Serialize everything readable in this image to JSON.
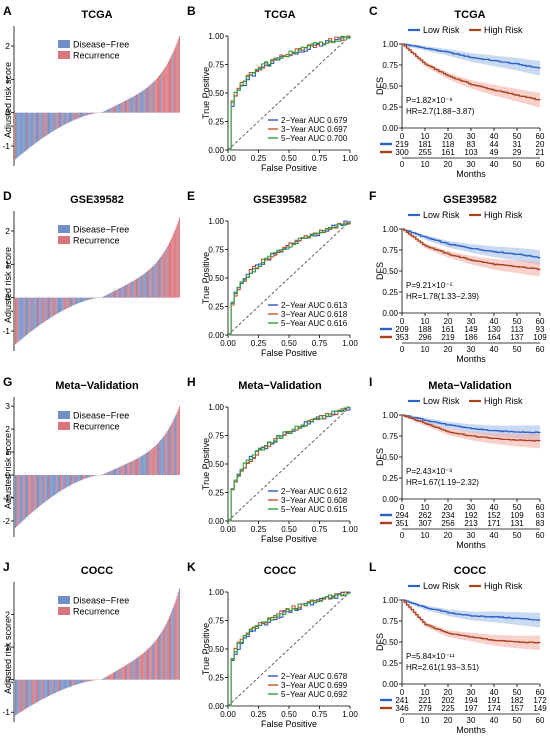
{
  "rows": [
    {
      "waterfall": {
        "letter": "A",
        "title": "TCGA",
        "ylabel": "Adjusted risk score",
        "legend": [
          "Disease−Free",
          "Recurrence"
        ],
        "ylim": [
          -1.6,
          2.6
        ],
        "yticks": [
          -1,
          0,
          1,
          2
        ],
        "min": -1.4,
        "max": 2.3
      },
      "roc": {
        "letter": "B",
        "title": "TCGA",
        "xlabel": "False Positive",
        "ylabel": "True Positive",
        "ticks": [
          "0.00",
          "0.25",
          "0.50",
          "0.75",
          "1.00"
        ],
        "auc_labels": [
          "2−Year AUC 0.679",
          "3−Year AUC 0.697",
          "5−Year AUC 0.700"
        ]
      },
      "km": {
        "letter": "C",
        "title": "TCGA",
        "ylabel": "DFS",
        "xlabel": "Months",
        "legend": [
          "Low Risk",
          "High Risk"
        ],
        "yticks": [
          "0.00",
          "0.25",
          "0.50",
          "0.75",
          "1.00"
        ],
        "xticks": [
          "0",
          "10",
          "20",
          "30",
          "40",
          "50",
          "60"
        ],
        "pvalue": "P=1.82×10⁻⁸",
        "hr": "HR=2.7(1.88−3.87)",
        "risk_low": [
          "219",
          "181",
          "118",
          "83",
          "44",
          "31",
          "20"
        ],
        "risk_high": [
          "300",
          "255",
          "161",
          "103",
          "49",
          "29",
          "21"
        ],
        "curve_low": [
          [
            0,
            1.0
          ],
          [
            10,
            0.95
          ],
          [
            20,
            0.9
          ],
          [
            30,
            0.84
          ],
          [
            40,
            0.8
          ],
          [
            50,
            0.76
          ],
          [
            60,
            0.71
          ]
        ],
        "curve_high": [
          [
            0,
            1.0
          ],
          [
            10,
            0.76
          ],
          [
            20,
            0.62
          ],
          [
            30,
            0.52
          ],
          [
            40,
            0.45
          ],
          [
            50,
            0.39
          ],
          [
            60,
            0.33
          ]
        ]
      }
    },
    {
      "waterfall": {
        "letter": "D",
        "title": "GSE39582",
        "ylabel": "Adjusted risk score",
        "legend": [
          "Disease−Free",
          "Recurrence"
        ],
        "ylim": [
          -1.6,
          2.6
        ],
        "yticks": [
          -1,
          0,
          1,
          2
        ],
        "min": -1.4,
        "max": 2.4
      },
      "roc": {
        "letter": "E",
        "title": "GSE39582",
        "xlabel": "False Positive",
        "ylabel": "True Positive",
        "ticks": [
          "0.00",
          "0.25",
          "0.50",
          "0.75",
          "1.00"
        ],
        "auc_labels": [
          "2−Year AUC 0.613",
          "3−Year AUC 0.618",
          "5−Year AUC 0.616"
        ]
      },
      "km": {
        "letter": "F",
        "title": "GSE39582",
        "ylabel": "DFS",
        "xlabel": "Months",
        "legend": [
          "Low Risk",
          "High Risk"
        ],
        "yticks": [
          "0.00",
          "0.25",
          "0.50",
          "0.75",
          "1.00"
        ],
        "xticks": [
          "0",
          "10",
          "20",
          "30",
          "40",
          "50",
          "60"
        ],
        "pvalue": "P=9.21×10⁻⁵",
        "hr": "HR=1.78(1.33−2.39)",
        "risk_low": [
          "209",
          "188",
          "161",
          "149",
          "130",
          "113",
          "93"
        ],
        "risk_high": [
          "353",
          "296",
          "219",
          "186",
          "164",
          "137",
          "109"
        ],
        "curve_low": [
          [
            0,
            1.0
          ],
          [
            10,
            0.9
          ],
          [
            20,
            0.82
          ],
          [
            30,
            0.77
          ],
          [
            40,
            0.73
          ],
          [
            50,
            0.7
          ],
          [
            60,
            0.66
          ]
        ],
        "curve_high": [
          [
            0,
            1.0
          ],
          [
            10,
            0.8
          ],
          [
            20,
            0.7
          ],
          [
            30,
            0.63
          ],
          [
            40,
            0.58
          ],
          [
            50,
            0.55
          ],
          [
            60,
            0.52
          ]
        ]
      }
    },
    {
      "waterfall": {
        "letter": "G",
        "title": "Meta−Validation",
        "ylabel": "Adjusted risk score",
        "legend": [
          "Disease−Free",
          "Recurrence"
        ],
        "ylim": [
          -2.7,
          3.4
        ],
        "yticks": [
          -2,
          -1,
          0,
          1,
          2,
          3
        ],
        "min": -2.3,
        "max": 3.0
      },
      "roc": {
        "letter": "H",
        "title": "Meta−Validation",
        "xlabel": "False Positive",
        "ylabel": "True Positive",
        "ticks": [
          "0.00",
          "0.25",
          "0.50",
          "0.75",
          "1.00"
        ],
        "auc_labels": [
          "2−Year AUC 0.612",
          "3−Year AUC 0.608",
          "5−Year AUC 0.615"
        ]
      },
      "km": {
        "letter": "I",
        "title": "Meta−Validation",
        "ylabel": "DFS",
        "xlabel": "Months",
        "legend": [
          "Low Risk",
          "High Risk"
        ],
        "yticks": [
          "0.00",
          "0.25",
          "0.50",
          "0.75",
          "1.00"
        ],
        "xticks": [
          "0",
          "10",
          "20",
          "30",
          "40",
          "50",
          "60"
        ],
        "pvalue": "P=2.43×10⁻³",
        "hr": "HR=1.67(1.19−2.32)",
        "risk_low": [
          "294",
          "262",
          "234",
          "192",
          "152",
          "109",
          "63"
        ],
        "risk_high": [
          "351",
          "307",
          "256",
          "213",
          "171",
          "131",
          "83"
        ],
        "curve_low": [
          [
            0,
            1.0
          ],
          [
            10,
            0.94
          ],
          [
            20,
            0.88
          ],
          [
            30,
            0.84
          ],
          [
            40,
            0.81
          ],
          [
            50,
            0.8
          ],
          [
            60,
            0.79
          ]
        ],
        "curve_high": [
          [
            0,
            1.0
          ],
          [
            10,
            0.9
          ],
          [
            20,
            0.8
          ],
          [
            30,
            0.75
          ],
          [
            40,
            0.72
          ],
          [
            50,
            0.7
          ],
          [
            60,
            0.69
          ]
        ]
      }
    },
    {
      "waterfall": {
        "letter": "J",
        "title": "COCC",
        "ylabel": "Adjusted risk score",
        "legend": [
          "Disease−Free",
          "Recurrence"
        ],
        "ylim": [
          -1.3,
          3.0
        ],
        "yticks": [
          -1,
          0,
          1,
          2
        ],
        "min": -1.1,
        "max": 2.8
      },
      "roc": {
        "letter": "K",
        "title": "COCC",
        "xlabel": "False Positive",
        "ylabel": "True Positive",
        "ticks": [
          "0.00",
          "0.25",
          "0.50",
          "0.75",
          "1.00"
        ],
        "auc_labels": [
          "2−Year AUC 0.678",
          "3−Year AUC 0.699",
          "5−Year AUC 0.692"
        ]
      },
      "km": {
        "letter": "L",
        "title": "COCC",
        "ylabel": "DFS",
        "xlabel": "Months",
        "legend": [
          "Low Risk",
          "High Risk"
        ],
        "yticks": [
          "0.00",
          "0.25",
          "0.50",
          "0.75",
          "1.00"
        ],
        "xticks": [
          "0",
          "10",
          "20",
          "30",
          "40",
          "50",
          "60"
        ],
        "pvalue": "P=5.84×10⁻¹¹",
        "hr": "HR=2.61(1.93−3.51)",
        "risk_low": [
          "241",
          "221",
          "202",
          "194",
          "191",
          "182",
          "172"
        ],
        "risk_high": [
          "346",
          "279",
          "225",
          "197",
          "174",
          "157",
          "149"
        ],
        "curve_low": [
          [
            0,
            1.0
          ],
          [
            10,
            0.91
          ],
          [
            20,
            0.85
          ],
          [
            30,
            0.81
          ],
          [
            40,
            0.8
          ],
          [
            50,
            0.78
          ],
          [
            60,
            0.76
          ]
        ],
        "curve_high": [
          [
            0,
            1.0
          ],
          [
            10,
            0.71
          ],
          [
            20,
            0.6
          ],
          [
            30,
            0.56
          ],
          [
            40,
            0.52
          ],
          [
            50,
            0.5
          ],
          [
            60,
            0.49
          ]
        ]
      }
    }
  ],
  "colors": {
    "disease_free": "#6f8fc6",
    "recurrence": "#d9747c",
    "low_risk": "#2c63c9",
    "high_risk": "#a8431e",
    "roc_2y": "#3255c8",
    "roc_3y": "#c0562a",
    "roc_5y": "#2e9e3c",
    "ci_low": "#9db9e8",
    "ci_high": "#f2a9a3"
  },
  "chart_data": [
    {
      "type": "bar",
      "title": "TCGA",
      "ylabel": "Adjusted risk score",
      "ylim": [
        -1.6,
        2.6
      ],
      "series": [
        {
          "name": "Disease−Free"
        },
        {
          "name": "Recurrence"
        }
      ],
      "range": [
        -1.4,
        2.3
      ]
    },
    {
      "type": "line",
      "title": "TCGA",
      "xlabel": "False Positive",
      "ylabel": "True Positive",
      "series": [
        {
          "name": "2−Year AUC 0.679"
        },
        {
          "name": "3−Year AUC 0.697"
        },
        {
          "name": "5−Year AUC 0.700"
        }
      ]
    },
    {
      "type": "line",
      "title": "TCGA",
      "ylabel": "DFS",
      "xlabel": "Months",
      "series": [
        {
          "name": "Low Risk",
          "x": [
            0,
            10,
            20,
            30,
            40,
            50,
            60
          ],
          "y": [
            1.0,
            0.95,
            0.9,
            0.84,
            0.8,
            0.76,
            0.71
          ]
        },
        {
          "name": "High Risk",
          "x": [
            0,
            10,
            20,
            30,
            40,
            50,
            60
          ],
          "y": [
            1.0,
            0.76,
            0.62,
            0.52,
            0.45,
            0.39,
            0.33
          ]
        }
      ]
    },
    {
      "type": "bar",
      "title": "GSE39582",
      "ylabel": "Adjusted risk score",
      "ylim": [
        -1.6,
        2.6
      ],
      "series": [
        {
          "name": "Disease−Free"
        },
        {
          "name": "Recurrence"
        }
      ],
      "range": [
        -1.4,
        2.4
      ]
    },
    {
      "type": "line",
      "title": "GSE39582",
      "xlabel": "False Positive",
      "ylabel": "True Positive",
      "series": [
        {
          "name": "2−Year AUC 0.613"
        },
        {
          "name": "3−Year AUC 0.618"
        },
        {
          "name": "5−Year AUC 0.616"
        }
      ]
    },
    {
      "type": "line",
      "title": "GSE39582",
      "ylabel": "DFS",
      "xlabel": "Months",
      "series": [
        {
          "name": "Low Risk",
          "x": [
            0,
            10,
            20,
            30,
            40,
            50,
            60
          ],
          "y": [
            1.0,
            0.9,
            0.82,
            0.77,
            0.73,
            0.7,
            0.66
          ]
        },
        {
          "name": "High Risk",
          "x": [
            0,
            10,
            20,
            30,
            40,
            50,
            60
          ],
          "y": [
            1.0,
            0.8,
            0.7,
            0.63,
            0.58,
            0.55,
            0.52
          ]
        }
      ]
    },
    {
      "type": "bar",
      "title": "Meta−Validation",
      "ylabel": "Adjusted risk score",
      "ylim": [
        -2.7,
        3.4
      ],
      "series": [
        {
          "name": "Disease−Free"
        },
        {
          "name": "Recurrence"
        }
      ],
      "range": [
        -2.3,
        3.0
      ]
    },
    {
      "type": "line",
      "title": "Meta−Validation",
      "xlabel": "False Positive",
      "ylabel": "True Positive",
      "series": [
        {
          "name": "2−Year AUC 0.612"
        },
        {
          "name": "3−Year AUC 0.608"
        },
        {
          "name": "5−Year AUC 0.615"
        }
      ]
    },
    {
      "type": "line",
      "title": "Meta−Validation",
      "ylabel": "DFS",
      "xlabel": "Months",
      "series": [
        {
          "name": "Low Risk",
          "x": [
            0,
            10,
            20,
            30,
            40,
            50,
            60
          ],
          "y": [
            1.0,
            0.94,
            0.88,
            0.84,
            0.81,
            0.8,
            0.79
          ]
        },
        {
          "name": "High Risk",
          "x": [
            0,
            10,
            20,
            30,
            40,
            50,
            60
          ],
          "y": [
            1.0,
            0.9,
            0.8,
            0.75,
            0.72,
            0.7,
            0.69
          ]
        }
      ]
    },
    {
      "type": "bar",
      "title": "COCC",
      "ylabel": "Adjusted risk score",
      "ylim": [
        -1.3,
        3.0
      ],
      "series": [
        {
          "name": "Disease−Free"
        },
        {
          "name": "Recurrence"
        }
      ],
      "range": [
        -1.1,
        2.8
      ]
    },
    {
      "type": "line",
      "title": "COCC",
      "xlabel": "False Positive",
      "ylabel": "True Positive",
      "series": [
        {
          "name": "2−Year AUC 0.678"
        },
        {
          "name": "3−Year AUC 0.699"
        },
        {
          "name": "5−Year AUC 0.692"
        }
      ]
    },
    {
      "type": "line",
      "title": "COCC",
      "ylabel": "DFS",
      "xlabel": "Months",
      "series": [
        {
          "name": "Low Risk",
          "x": [
            0,
            10,
            20,
            30,
            40,
            50,
            60
          ],
          "y": [
            1.0,
            0.91,
            0.85,
            0.81,
            0.8,
            0.78,
            0.76
          ]
        },
        {
          "name": "High Risk",
          "x": [
            0,
            10,
            20,
            30,
            40,
            50,
            60
          ],
          "y": [
            1.0,
            0.71,
            0.6,
            0.56,
            0.52,
            0.5,
            0.49
          ]
        }
      ]
    }
  ]
}
